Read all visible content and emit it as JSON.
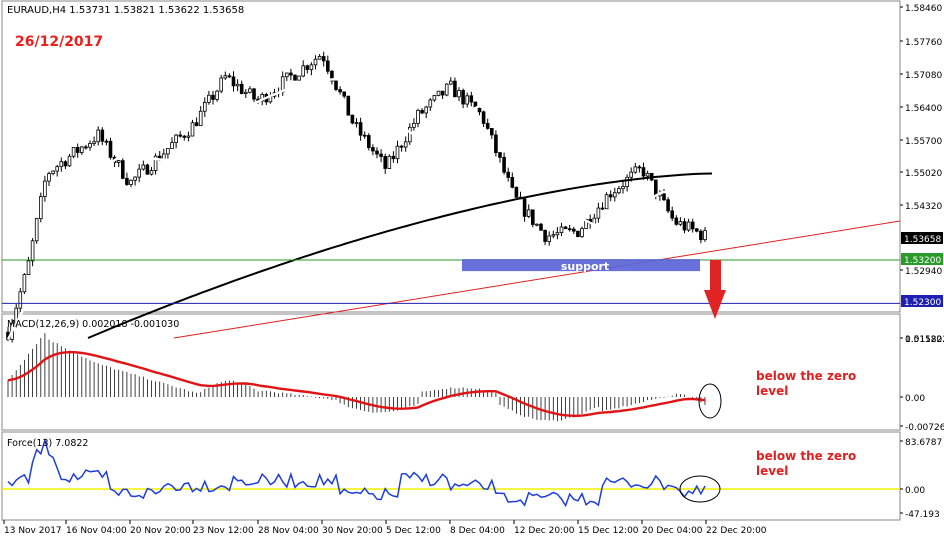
{
  "header": {
    "instrument": "EURAUD,H4",
    "ohlc": "1.53731 1.53821 1.53622 1.53658",
    "date": "26/12/2017"
  },
  "colors": {
    "date": "#e8201a",
    "ma_fast": "#ffffff",
    "ma_slow": "#000000",
    "trend": "#e02020",
    "support_line": "#2a9a2a",
    "target_line": "#2020b0",
    "support_box": "#5b64d6",
    "arrow": "#e02424",
    "macd_signal": "#e01414",
    "force": "#1f3dd8",
    "zero_line": "#f2f200"
  },
  "main": {
    "yticks": [
      "1.58460",
      "1.57760",
      "1.57080",
      "1.56400",
      "1.55700",
      "1.55020",
      "1.54320",
      "1.53658",
      "1.53200",
      "1.52940",
      "1.52300",
      "1.51580"
    ],
    "current_price": "1.53658",
    "support_price": "1.53200",
    "target_price": "1.52300",
    "support_label": "support",
    "arrow": "down-arrow"
  },
  "macd": {
    "label": "MACD(12,26,9) 0.002018 -0.001030",
    "yticks": [
      "0.011222",
      "0.00",
      "-0.00726"
    ],
    "annotation": "below the zero\nlevel"
  },
  "force": {
    "label": "Force(13) 7.0822",
    "yticks": [
      "83.6787",
      "0.00",
      "-47.193"
    ],
    "annotation": "below the zero\nlevel"
  },
  "xaxis": {
    "labels": [
      "13 Nov 2017",
      "16 Nov 04:00",
      "20 Nov 20:00",
      "23 Nov 12:00",
      "28 Nov 04:00",
      "30 Nov 20:00",
      "5 Dec 12:00",
      "8 Dec 04:00",
      "12 Dec 20:00",
      "15 Dec 12:00",
      "20 Dec 04:00",
      "22 Dec 20:00"
    ]
  },
  "chart_data": [
    {
      "type": "candlestick",
      "ylim": [
        1.5158,
        1.5846
      ],
      "x_range": [
        "13 Nov 2017",
        "22 Dec 20:00"
      ],
      "close_anchors": [
        {
          "t": "13 Nov 2017",
          "v": 1.517
        },
        {
          "t": "14 Nov",
          "v": 1.53
        },
        {
          "t": "15 Nov",
          "v": 1.55
        },
        {
          "t": "16 Nov 04:00",
          "v": 1.553
        },
        {
          "t": "17 Nov",
          "v": 1.558
        },
        {
          "t": "20 Nov 20:00",
          "v": 1.548
        },
        {
          "t": "23 Nov 12:00",
          "v": 1.56
        },
        {
          "t": "24 Nov",
          "v": 1.57
        },
        {
          "t": "28 Nov 04:00",
          "v": 1.565
        },
        {
          "t": "30 Nov 20:00",
          "v": 1.575
        },
        {
          "t": "1 Dec",
          "v": 1.56
        },
        {
          "t": "5 Dec 12:00",
          "v": 1.551
        },
        {
          "t": "6 Dec",
          "v": 1.562
        },
        {
          "t": "8 Dec 04:00",
          "v": 1.568
        },
        {
          "t": "11 Dec",
          "v": 1.562
        },
        {
          "t": "12 Dec 20:00",
          "v": 1.545
        },
        {
          "t": "13 Dec",
          "v": 1.537
        },
        {
          "t": "15 Dec 12:00",
          "v": 1.538
        },
        {
          "t": "18 Dec",
          "v": 1.546
        },
        {
          "t": "20 Dec 04:00",
          "v": 1.551
        },
        {
          "t": "21 Dec",
          "v": 1.54
        },
        {
          "t": "22 Dec 20:00",
          "v": 1.5366
        }
      ],
      "overlays": {
        "support_level": 1.532,
        "target_level": 1.523,
        "trendline": {
          "from": {
            "t": "20 Nov 20:00",
            "v": 1.5158
          },
          "to": {
            "t": "22 Dec 20:00",
            "v": 1.539
          }
        },
        "ma_slow_end": 1.55,
        "support_zone": [
          1.5297,
          1.5322
        ]
      }
    },
    {
      "type": "bar",
      "name": "MACD(12,26,9)",
      "ylim": [
        -0.00726,
        0.011222
      ],
      "main": 0.002018,
      "signal": -0.00103
    },
    {
      "type": "line",
      "name": "Force(13)",
      "ylim": [
        -47.193,
        83.6787
      ],
      "last": 7.0822
    }
  ]
}
